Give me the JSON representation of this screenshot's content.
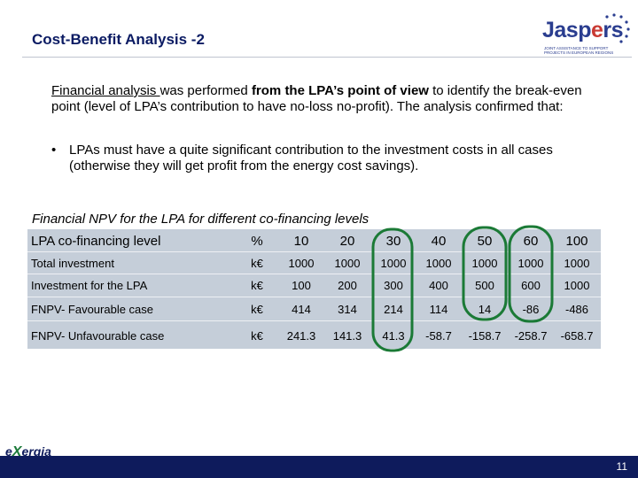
{
  "header": {
    "title": "Cost-Benefit Analysis -2",
    "logo_text_a": "Jasp",
    "logo_text_b": "e",
    "logo_text_c": "rs",
    "logo_subtitle": "JOINT ASSISTANCE TO SUPPORT PROJECTS IN EUROPEAN REGIONS"
  },
  "body": {
    "para_underlined": "Financial analysis ",
    "para_part1": "was performed ",
    "para_bold": "from the LPA’s point of view",
    "para_part2": " to identify the break-even point (level of LPA’s contribution to have no-loss no-profit). The analysis confirmed that:",
    "bullet_symbol": "•",
    "bullet_text": "LPAs must have a quite significant contribution to the investment costs in all cases (otherwise they will get profit from the energy cost savings)."
  },
  "table": {
    "caption": "Financial NPV for the LPA for different co-financing levels",
    "header_label": "LPA co-financing level",
    "header_unit": "%",
    "levels": [
      "10",
      "20",
      "30",
      "40",
      "50",
      "60",
      "100"
    ],
    "rows": [
      {
        "label": "Total investment",
        "unit": "k€",
        "values": [
          "1000",
          "1000",
          "1000",
          "1000",
          "1000",
          "1000",
          "1000"
        ]
      },
      {
        "label": "Investment for the LPA",
        "unit": "k€",
        "values": [
          "100",
          "200",
          "300",
          "400",
          "500",
          "600",
          "1000"
        ]
      },
      {
        "label": "FNPV- Favourable case",
        "unit": "k€",
        "values": [
          "414",
          "314",
          "214",
          "114",
          "14",
          "-86",
          "-486"
        ]
      },
      {
        "label": "FNPV- Unfavourable case",
        "unit": "k€",
        "values": [
          "241.3",
          "141.3",
          "41.3",
          "-58.7",
          "-158.7",
          "-258.7",
          "-658.7"
        ]
      }
    ],
    "highlight_color": "#1b7a36"
  },
  "footer": {
    "brand_a": "e",
    "brand_x": "X",
    "brand_b": "ergia",
    "page_number": "11"
  }
}
